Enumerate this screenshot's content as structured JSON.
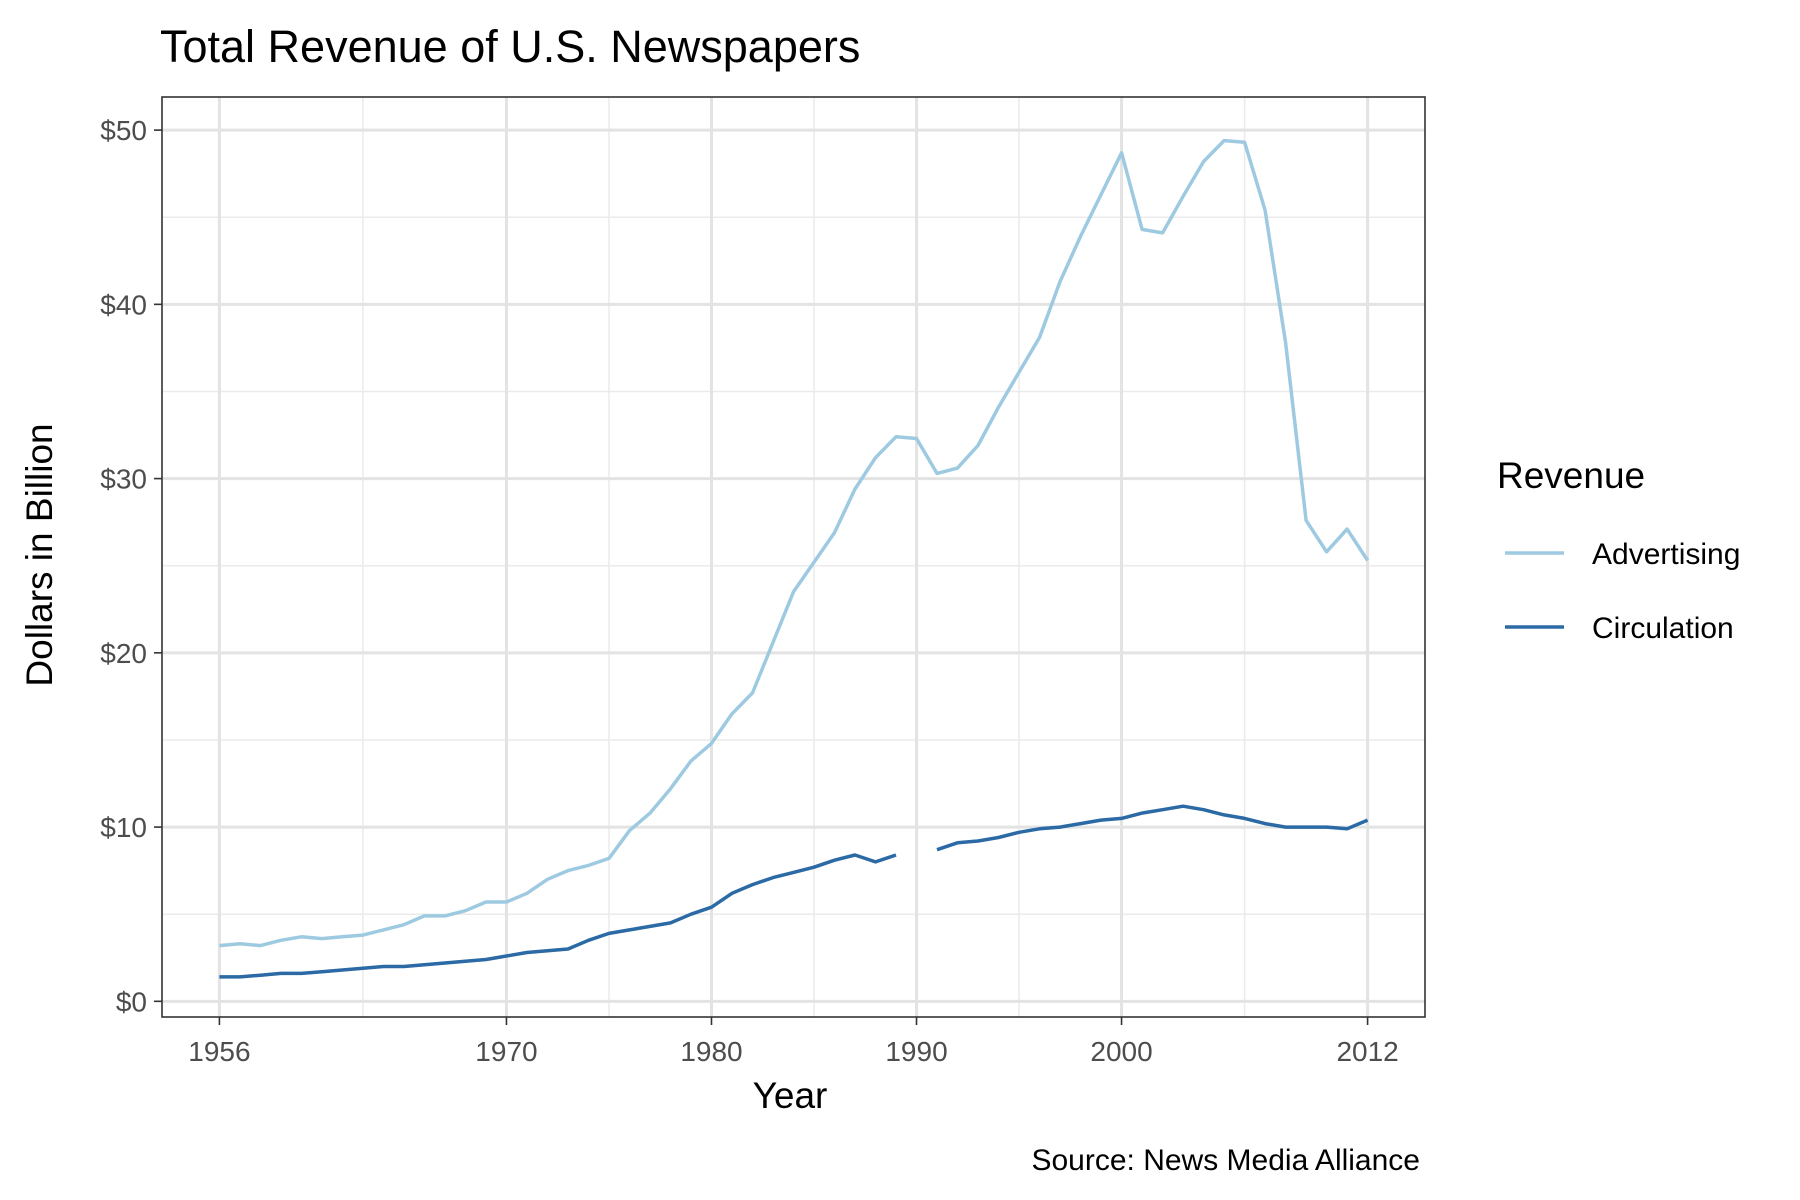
{
  "chart_data": {
    "type": "line",
    "title": "Total Revenue of U.S. Newspapers",
    "xlabel": "Year",
    "ylabel": "Dollars in Billion",
    "caption": "Source: News Media Alliance",
    "legend_title": "Revenue",
    "legend_position": "right",
    "grid": true,
    "xlim": [
      1953.2,
      2014.8
    ],
    "ylim": [
      -0.9,
      51.9
    ],
    "x_ticks": [
      1956,
      1970,
      1980,
      1990,
      2000,
      2012
    ],
    "x_tick_labels": [
      "1956",
      "1970",
      "1980",
      "1990",
      "2000",
      "2012"
    ],
    "y_ticks": [
      0,
      10,
      20,
      30,
      40,
      50
    ],
    "y_tick_labels": [
      "$0",
      "$10",
      "$20",
      "$30",
      "$40",
      "$50"
    ],
    "series": [
      {
        "name": "Advertising",
        "color": "#9ecae1",
        "x": [
          1956,
          1957,
          1958,
          1959,
          1960,
          1961,
          1962,
          1963,
          1964,
          1965,
          1966,
          1967,
          1968,
          1969,
          1970,
          1971,
          1972,
          1973,
          1974,
          1975,
          1976,
          1977,
          1978,
          1979,
          1980,
          1981,
          1982,
          1983,
          1984,
          1985,
          1986,
          1987,
          1988,
          1989,
          1990,
          1991,
          1992,
          1993,
          1994,
          1995,
          1996,
          1997,
          1998,
          1999,
          2000,
          2001,
          2002,
          2003,
          2004,
          2005,
          2006,
          2007,
          2008,
          2009,
          2010,
          2011,
          2012
        ],
        "values": [
          3.2,
          3.3,
          3.2,
          3.5,
          3.7,
          3.6,
          3.7,
          3.8,
          4.1,
          4.4,
          4.9,
          4.9,
          5.2,
          5.7,
          5.7,
          6.2,
          7.0,
          7.5,
          7.8,
          8.2,
          9.8,
          10.8,
          12.2,
          13.8,
          14.8,
          16.5,
          17.7,
          20.6,
          23.5,
          25.2,
          26.9,
          29.4,
          31.2,
          32.4,
          32.3,
          30.3,
          30.6,
          31.9,
          34.1,
          36.1,
          38.1,
          41.3,
          43.9,
          46.3,
          48.7,
          44.3,
          44.1,
          46.2,
          48.2,
          49.4,
          49.3,
          45.4,
          37.8,
          27.6,
          25.8,
          27.1,
          25.3
        ]
      },
      {
        "name": "Circulation",
        "color": "#2b6aa5",
        "x": [
          1956,
          1957,
          1958,
          1959,
          1960,
          1961,
          1962,
          1963,
          1964,
          1965,
          1966,
          1967,
          1968,
          1969,
          1970,
          1971,
          1972,
          1973,
          1974,
          1975,
          1976,
          1977,
          1978,
          1979,
          1980,
          1981,
          1982,
          1983,
          1984,
          1985,
          1986,
          1987,
          1988,
          1989,
          1990,
          1991,
          1992,
          1993,
          1994,
          1995,
          1996,
          1997,
          1998,
          1999,
          2000,
          2001,
          2002,
          2003,
          2004,
          2005,
          2006,
          2007,
          2008,
          2009,
          2010,
          2011,
          2012
        ],
        "values": [
          1.4,
          1.4,
          1.5,
          1.6,
          1.6,
          1.7,
          1.8,
          1.9,
          2.0,
          2.0,
          2.1,
          2.2,
          2.3,
          2.4,
          2.6,
          2.8,
          2.9,
          3.0,
          3.5,
          3.9,
          4.1,
          4.3,
          4.5,
          5.0,
          5.4,
          6.2,
          6.7,
          7.1,
          7.4,
          7.7,
          8.1,
          8.4,
          8.0,
          8.4,
          null,
          8.7,
          9.1,
          9.2,
          9.4,
          9.7,
          9.9,
          10.0,
          10.2,
          10.4,
          10.5,
          10.8,
          11.0,
          11.2,
          11.0,
          10.7,
          10.5,
          10.2,
          10.0,
          10.0,
          10.0,
          9.9,
          10.4
        ]
      }
    ]
  }
}
